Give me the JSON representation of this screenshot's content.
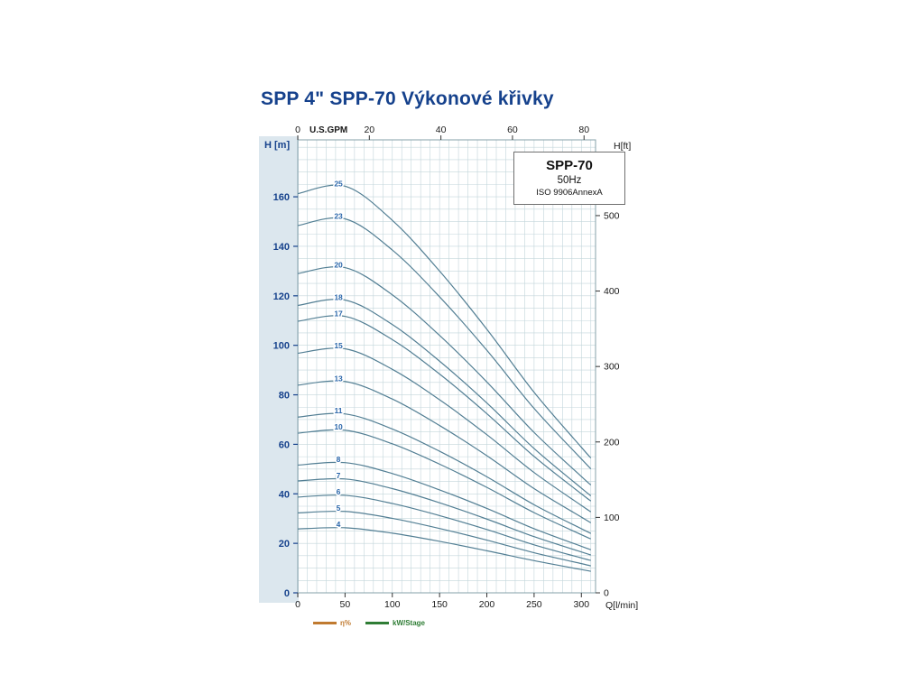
{
  "title": "SPP 4\" SPP-70 Výkonové křivky",
  "chart_data": {
    "type": "line",
    "info_box": {
      "model": "SPP-70",
      "frequency": "50Hz",
      "standard": "ISO 9906AnnexA"
    },
    "axes": {
      "bottom": {
        "label": "Q[l/min]",
        "ticks": [
          0,
          50,
          100,
          150,
          200,
          250,
          300
        ],
        "range": [
          0,
          315
        ]
      },
      "top": {
        "label": "U.S.GPM",
        "ticks": [
          0,
          20,
          40,
          60,
          80
        ],
        "lpm_per_gpm": 3.7854
      },
      "left": {
        "label": "H [m]",
        "ticks": [
          0,
          20,
          40,
          60,
          80,
          100,
          120,
          140,
          160
        ],
        "range": [
          0,
          183
        ]
      },
      "right": {
        "label": "H[ft]",
        "ticks": [
          0,
          100,
          200,
          300,
          400,
          500
        ],
        "m_per_ft": 0.3048
      }
    },
    "grid": {
      "x_step_lpm": 10,
      "y_step_m": 5
    },
    "q_lpm": [
      0,
      50,
      100,
      150,
      200,
      250,
      300,
      310
    ],
    "stage_label_q": 43,
    "series": [
      {
        "stages": "25",
        "head_m": [
          161.3,
          164.3,
          150.5,
          130.0,
          106.5,
          81.0,
          58.8,
          54.5
        ]
      },
      {
        "stages": "23",
        "head_m": [
          148.4,
          151.1,
          138.5,
          119.6,
          98.0,
          74.5,
          54.1,
          50.1
        ]
      },
      {
        "stages": "20",
        "head_m": [
          129.0,
          131.4,
          120.4,
          104.0,
          85.2,
          64.8,
          47.0,
          43.6
        ]
      },
      {
        "stages": "18",
        "head_m": [
          116.1,
          118.3,
          108.4,
          93.6,
          76.7,
          58.3,
          42.3,
          39.2
        ]
      },
      {
        "stages": "17",
        "head_m": [
          109.7,
          111.7,
          102.3,
          88.4,
          72.4,
          55.1,
          40.0,
          37.1
        ]
      },
      {
        "stages": "15",
        "head_m": [
          96.8,
          98.6,
          90.3,
          78.0,
          63.9,
          48.6,
          35.3,
          32.7
        ]
      },
      {
        "stages": "13",
        "head_m": [
          83.9,
          85.4,
          78.3,
          67.6,
          55.4,
          42.1,
          30.6,
          28.3
        ]
      },
      {
        "stages": "11",
        "head_m": [
          71.0,
          72.3,
          66.2,
          57.2,
          46.9,
          35.6,
          25.9,
          24.0
        ]
      },
      {
        "stages": "10",
        "head_m": [
          64.5,
          65.7,
          60.2,
          52.0,
          42.6,
          32.4,
          23.5,
          21.8
        ]
      },
      {
        "stages": "8",
        "head_m": [
          51.6,
          52.6,
          48.2,
          41.6,
          34.1,
          25.9,
          18.8,
          17.4
        ]
      },
      {
        "stages": "7",
        "head_m": [
          45.2,
          46.0,
          42.1,
          36.4,
          29.8,
          22.7,
          16.5,
          15.3
        ]
      },
      {
        "stages": "6",
        "head_m": [
          38.7,
          39.4,
          36.1,
          31.2,
          25.6,
          19.4,
          14.1,
          13.1
        ]
      },
      {
        "stages": "5",
        "head_m": [
          32.3,
          32.9,
          30.1,
          26.0,
          21.3,
          16.2,
          11.8,
          10.9
        ]
      },
      {
        "stages": "4",
        "head_m": [
          25.8,
          26.3,
          24.1,
          20.8,
          17.0,
          13.0,
          9.4,
          8.7
        ]
      }
    ],
    "legend": [
      {
        "label": "η%",
        "color": "#c07a30"
      },
      {
        "label": "kW/Stage",
        "color": "#2f7d35"
      }
    ],
    "colors": {
      "curve": "#537f94",
      "grid": "#c3d6db",
      "border": "#85a0a9",
      "tick": "#333333",
      "left_tick": "#15418c",
      "stage_label": "#2a66aa",
      "title": "#15418c"
    }
  }
}
